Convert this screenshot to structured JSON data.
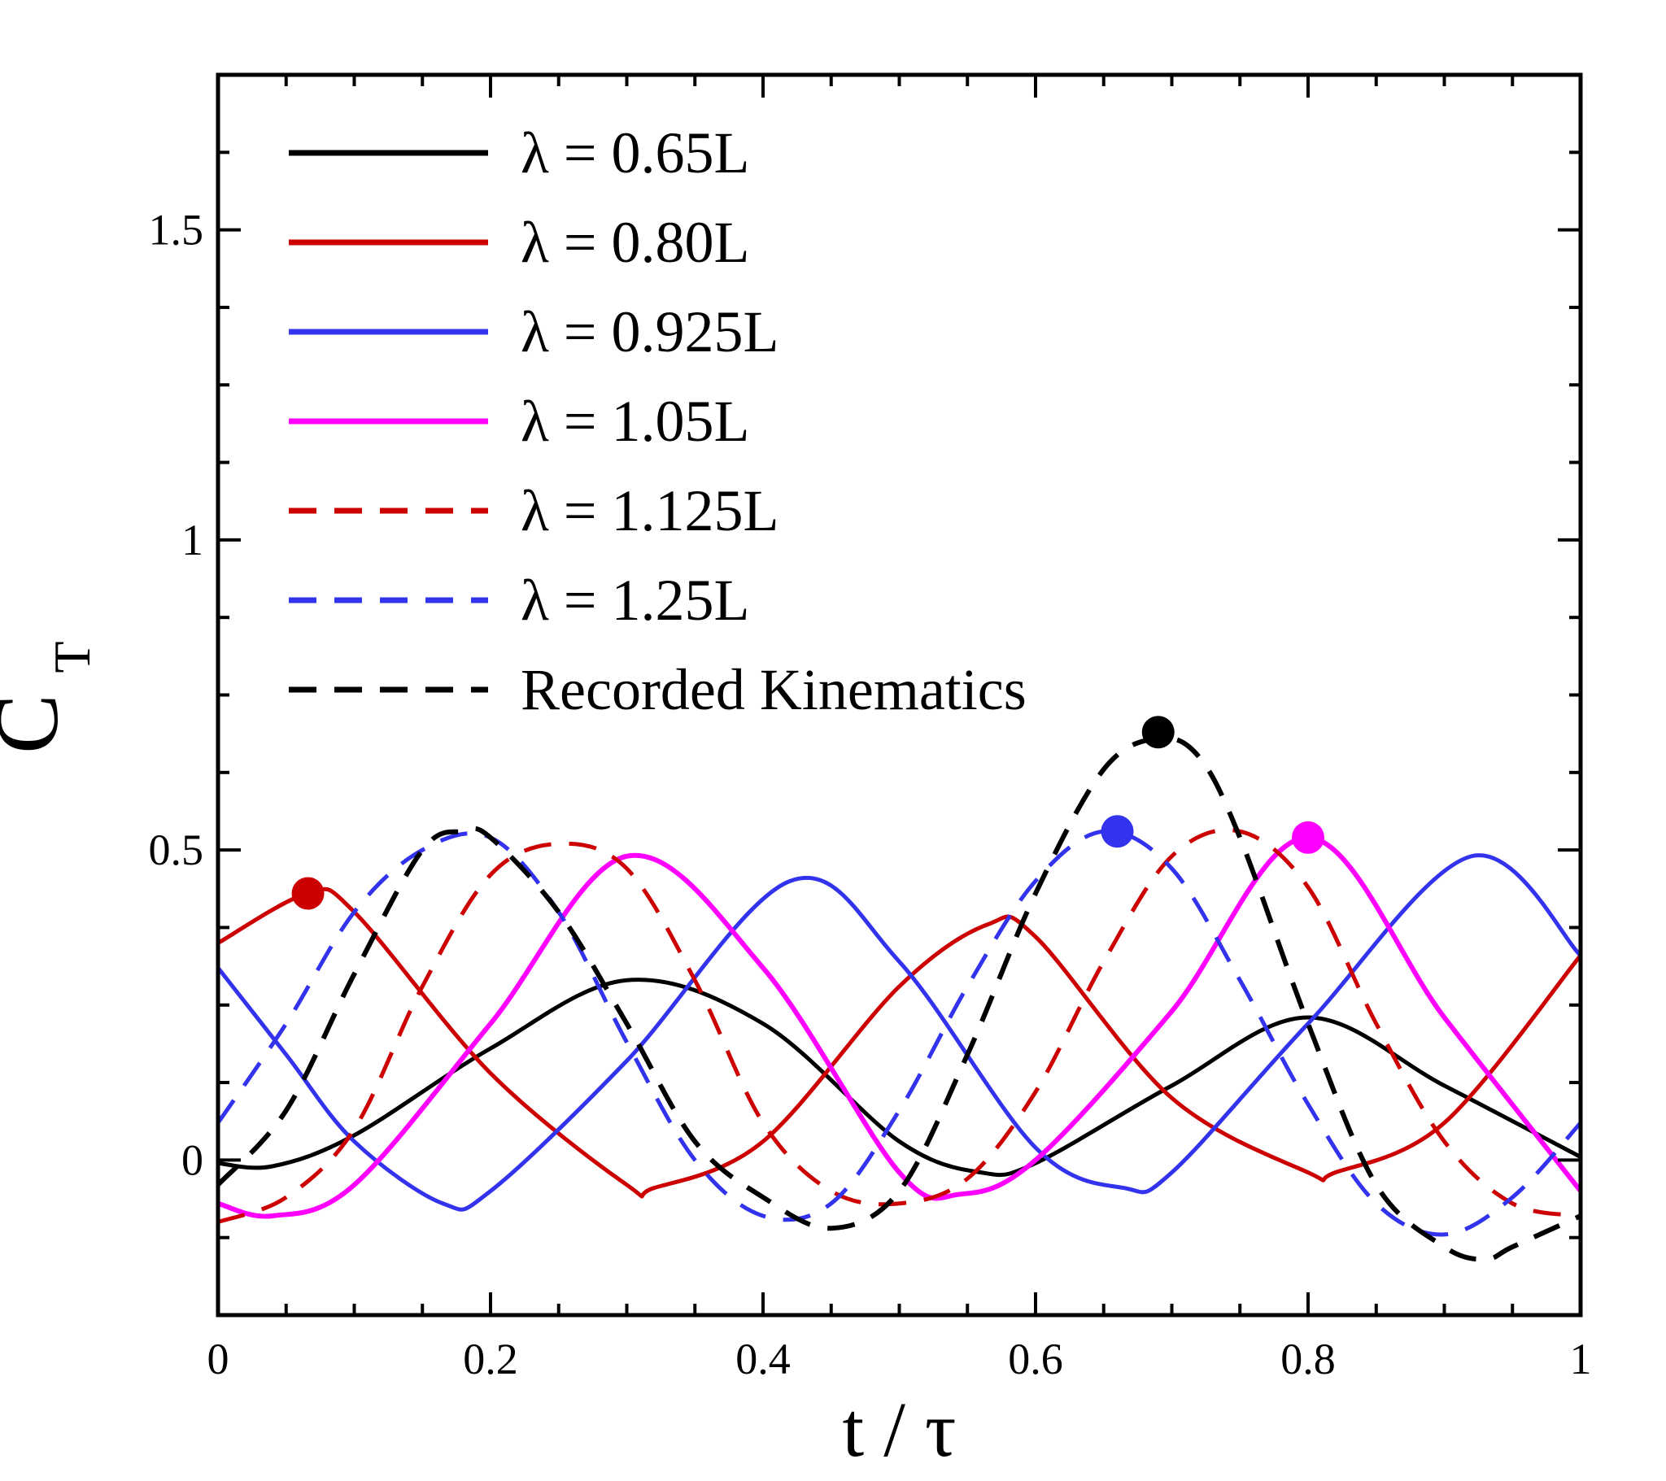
{
  "chart_data": {
    "type": "line",
    "title": "",
    "xlabel": "t / τ",
    "ylabel": "C",
    "ylabel_subscript": "T",
    "xlim": [
      0,
      1
    ],
    "ylim": [
      -0.25,
      1.75
    ],
    "x_ticks": [
      0,
      0.2,
      0.4,
      0.6,
      0.8,
      1
    ],
    "x_tick_labels": [
      "0",
      "0.2",
      "0.4",
      "0.6",
      "0.8",
      "1"
    ],
    "y_ticks": [
      0,
      0.5,
      1,
      1.5
    ],
    "y_tick_labels": [
      "0",
      "0.5",
      "1",
      "1.5"
    ],
    "grid": false,
    "legend_position": "top-left",
    "series": [
      {
        "name": "λ = 0.65L",
        "color": "#000000",
        "dash": "solid",
        "width": 5,
        "x": [
          0,
          0.04,
          0.1,
          0.2,
          0.3,
          0.4,
          0.5,
          0.56,
          0.6,
          0.7,
          0.8,
          0.9,
          1.0
        ],
        "y": [
          -0.005,
          -0.01,
          0.04,
          0.18,
          0.29,
          0.22,
          0.03,
          -0.02,
          -0.005,
          0.12,
          0.23,
          0.12,
          0.005
        ]
      },
      {
        "name": "λ = 0.80L",
        "color": "#cc0000",
        "dash": "solid",
        "width": 5,
        "x": [
          0,
          0.066,
          0.1,
          0.2,
          0.3,
          0.32,
          0.4,
          0.5,
          0.565,
          0.6,
          0.7,
          0.8,
          0.82,
          0.9,
          1.0
        ],
        "y": [
          0.35,
          0.43,
          0.4,
          0.14,
          -0.04,
          -0.045,
          0.03,
          0.28,
          0.38,
          0.36,
          0.1,
          -0.02,
          -0.02,
          0.06,
          0.33
        ]
      },
      {
        "name": "λ = 0.925L",
        "color": "#3333ee",
        "dash": "solid",
        "width": 5,
        "x": [
          0,
          0.05,
          0.1,
          0.165,
          0.2,
          0.3,
          0.42,
          0.5,
          0.6,
          0.665,
          0.7,
          0.8,
          0.92,
          1.0
        ],
        "y": [
          0.31,
          0.17,
          0.03,
          -0.07,
          -0.05,
          0.16,
          0.45,
          0.32,
          0.02,
          -0.045,
          -0.02,
          0.22,
          0.49,
          0.33
        ]
      },
      {
        "name": "λ = 1.05L",
        "color": "#ff00ff",
        "dash": "solid",
        "width": 6,
        "x": [
          0,
          0.04,
          0.1,
          0.2,
          0.3,
          0.4,
          0.5,
          0.545,
          0.6,
          0.7,
          0.8,
          0.9,
          1.0
        ],
        "y": [
          -0.07,
          -0.09,
          -0.04,
          0.22,
          0.49,
          0.31,
          -0.02,
          -0.055,
          0.0,
          0.24,
          0.52,
          0.23,
          -0.05
        ]
      },
      {
        "name": "λ = 1.125L",
        "color": "#cc0000",
        "dash": "dashed",
        "width": 5,
        "x": [
          0,
          0.05,
          0.1,
          0.15,
          0.2,
          0.25,
          0.3,
          0.35,
          0.4,
          0.45,
          0.5,
          0.55,
          0.6,
          0.65,
          0.7,
          0.75,
          0.8,
          0.85,
          0.9,
          0.95,
          1.0
        ],
        "y": [
          -0.1,
          -0.06,
          0.05,
          0.28,
          0.46,
          0.51,
          0.47,
          0.29,
          0.06,
          -0.05,
          -0.07,
          -0.03,
          0.11,
          0.32,
          0.49,
          0.53,
          0.44,
          0.22,
          0.03,
          -0.07,
          -0.09
        ]
      },
      {
        "name": "λ = 1.25L",
        "color": "#3333ee",
        "dash": "dashed",
        "width": 5,
        "x": [
          0,
          0.05,
          0.1,
          0.15,
          0.2,
          0.25,
          0.3,
          0.35,
          0.4,
          0.45,
          0.5,
          0.55,
          0.6,
          0.65,
          0.7,
          0.75,
          0.8,
          0.85,
          0.9,
          0.95,
          1.0
        ],
        "y": [
          0.06,
          0.22,
          0.4,
          0.5,
          0.52,
          0.4,
          0.19,
          0.0,
          -0.09,
          -0.07,
          0.08,
          0.28,
          0.45,
          0.53,
          0.47,
          0.29,
          0.09,
          -0.07,
          -0.12,
          -0.06,
          0.06
        ]
      },
      {
        "name": "Recorded Kinematics",
        "color": "#000000",
        "dash": "dashed",
        "width": 6,
        "x": [
          0,
          0.05,
          0.1,
          0.15,
          0.18,
          0.2,
          0.25,
          0.3,
          0.35,
          0.4,
          0.45,
          0.5,
          0.55,
          0.6,
          0.65,
          0.69,
          0.72,
          0.75,
          0.8,
          0.85,
          0.9,
          0.93,
          0.95,
          1.0
        ],
        "y": [
          -0.04,
          0.08,
          0.3,
          0.5,
          0.53,
          0.52,
          0.4,
          0.22,
          0.03,
          -0.06,
          -0.11,
          -0.05,
          0.17,
          0.43,
          0.63,
          0.68,
          0.65,
          0.52,
          0.22,
          -0.04,
          -0.14,
          -0.16,
          -0.14,
          -0.09
        ]
      }
    ],
    "markers": [
      {
        "x": 0.066,
        "y": 0.43,
        "color": "#cc0000"
      },
      {
        "x": 0.66,
        "y": 0.53,
        "color": "#3333ee"
      },
      {
        "x": 0.69,
        "y": 0.69,
        "color": "#000000"
      },
      {
        "x": 0.8,
        "y": 0.52,
        "color": "#ff00ff"
      }
    ]
  }
}
